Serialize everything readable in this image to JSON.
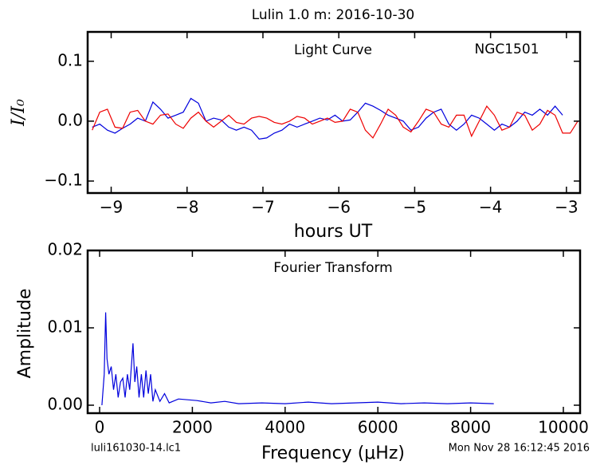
{
  "title": "Lulin 1.0 m:  2016-10-30",
  "file_name": "luli161030-14.lc1",
  "timestamp": "Mon Nov 28 16:12:45 2016",
  "chart_data": [
    {
      "type": "line",
      "annotations": [
        "Light Curve",
        "NGC1501"
      ],
      "x_label": "hours UT",
      "y_label": "I/I₀",
      "xlim": [
        -9.31,
        -2.82
      ],
      "ylim": [
        -0.12,
        0.149
      ],
      "xticks": [
        {
          "value": -9,
          "label": "−9"
        },
        {
          "value": -8,
          "label": "−8"
        },
        {
          "value": -7,
          "label": "−7"
        },
        {
          "value": -6,
          "label": "−6"
        },
        {
          "value": -5,
          "label": "−5"
        },
        {
          "value": -4,
          "label": "−4"
        },
        {
          "value": -3,
          "label": "−3"
        }
      ],
      "yticks": [
        {
          "value": -0.1,
          "label": "−0.1"
        },
        {
          "value": 0,
          "label": "0.0"
        },
        0.1
      ],
      "series": [
        {
          "color": "#0000dd",
          "x": [
            -9.25,
            -9.15,
            -9.05,
            -8.95,
            -8.85,
            -8.75,
            -8.65,
            -8.55,
            -8.45,
            -8.35,
            -8.25,
            -8.15,
            -8.05,
            -7.95,
            -7.85,
            -7.75,
            -7.65,
            -7.55,
            -7.45,
            -7.35,
            -7.25,
            -7.15,
            -7.05,
            -6.95,
            -6.85,
            -6.75,
            -6.65,
            -6.55,
            -6.45,
            -6.35,
            -6.25,
            -6.15,
            -6.05,
            -5.95,
            -5.85,
            -5.75,
            -5.65,
            -5.55,
            -5.45,
            -5.35,
            -5.25,
            -5.15,
            -5.05,
            -4.95,
            -4.85,
            -4.75,
            -4.65,
            -4.55,
            -4.45,
            -4.35,
            -4.25,
            -4.15,
            -4.05,
            -3.95,
            -3.85,
            -3.75,
            -3.65,
            -3.55,
            -3.45,
            -3.35,
            -3.25,
            -3.15,
            -3.05
          ],
          "values": [
            -0.01,
            -0.005,
            -0.015,
            -0.02,
            -0.012,
            -0.005,
            0.005,
            0.0,
            0.032,
            0.02,
            0.005,
            0.01,
            0.015,
            0.038,
            0.03,
            0.0,
            0.005,
            0.002,
            -0.01,
            -0.015,
            -0.01,
            -0.015,
            -0.03,
            -0.028,
            -0.02,
            -0.015,
            -0.005,
            -0.01,
            -0.005,
            0.0,
            0.005,
            0.002,
            0.01,
            0.0,
            0.002,
            0.015,
            0.03,
            0.025,
            0.018,
            0.01,
            0.005,
            0.0,
            -0.015,
            -0.01,
            0.005,
            0.015,
            0.02,
            -0.005,
            -0.015,
            -0.005,
            0.01,
            0.005,
            -0.005,
            -0.015,
            -0.005,
            -0.01,
            0.0,
            0.015,
            0.01,
            0.02,
            0.01,
            0.025,
            0.01
          ]
        },
        {
          "color": "#ee0000",
          "x": [
            -9.25,
            -9.15,
            -9.05,
            -8.95,
            -8.85,
            -8.75,
            -8.65,
            -8.55,
            -8.45,
            -8.35,
            -8.25,
            -8.15,
            -8.05,
            -7.95,
            -7.85,
            -7.75,
            -7.65,
            -7.55,
            -7.45,
            -7.35,
            -7.25,
            -7.15,
            -7.05,
            -6.95,
            -6.85,
            -6.75,
            -6.65,
            -6.55,
            -6.45,
            -6.35,
            -6.25,
            -6.15,
            -6.05,
            -5.95,
            -5.85,
            -5.75,
            -5.65,
            -5.55,
            -5.45,
            -5.35,
            -5.25,
            -5.15,
            -5.05,
            -4.95,
            -4.85,
            -4.75,
            -4.65,
            -4.55,
            -4.45,
            -4.35,
            -4.25,
            -4.15,
            -4.05,
            -3.95,
            -3.85,
            -3.75,
            -3.65,
            -3.55,
            -3.45,
            -3.35,
            -3.25,
            -3.15,
            -3.05,
            -2.95,
            -2.85
          ],
          "values": [
            -0.015,
            0.015,
            0.02,
            -0.01,
            -0.012,
            0.015,
            0.018,
            0.0,
            -0.005,
            0.01,
            0.012,
            -0.005,
            -0.012,
            0.005,
            0.015,
            0.0,
            -0.01,
            0.0,
            0.01,
            -0.002,
            -0.005,
            0.005,
            0.008,
            0.005,
            -0.002,
            -0.005,
            0.0,
            0.008,
            0.005,
            -0.005,
            0.0,
            0.005,
            -0.002,
            0.0,
            0.02,
            0.015,
            -0.015,
            -0.028,
            -0.005,
            0.02,
            0.01,
            -0.01,
            -0.018,
            0.0,
            0.02,
            0.015,
            -0.005,
            -0.01,
            0.01,
            0.01,
            -0.025,
            0.0,
            0.025,
            0.01,
            -0.015,
            -0.01,
            0.015,
            0.01,
            -0.015,
            -0.005,
            0.018,
            0.01,
            -0.02,
            -0.02,
            0.0
          ]
        }
      ]
    },
    {
      "type": "line",
      "annotations": [
        "Fourier Transform"
      ],
      "x_label": "Frequency (μHz)",
      "y_label": "Amplitude",
      "xlim": [
        -258,
        10361
      ],
      "ylim": [
        -0.00103,
        0.02
      ],
      "xticks": [
        0,
        2000,
        4000,
        6000,
        8000,
        10000
      ],
      "yticks": [
        {
          "value": 0,
          "label": "0.00"
        },
        0.01,
        0.02
      ],
      "series": [
        {
          "color": "#0000dd",
          "x": [
            50,
            100,
            130,
            160,
            200,
            250,
            300,
            350,
            400,
            450,
            500,
            550,
            600,
            650,
            720,
            760,
            800,
            850,
            900,
            950,
            1000,
            1050,
            1100,
            1150,
            1200,
            1300,
            1400,
            1500,
            1700,
            1900,
            2100,
            2400,
            2700,
            3000,
            3500,
            4000,
            4500,
            5000,
            5500,
            6000,
            6500,
            7000,
            7500,
            8000,
            8500
          ],
          "values": [
            0.0,
            0.004,
            0.012,
            0.006,
            0.004,
            0.005,
            0.002,
            0.004,
            0.001,
            0.003,
            0.0035,
            0.001,
            0.004,
            0.002,
            0.008,
            0.003,
            0.005,
            0.001,
            0.004,
            0.001,
            0.0045,
            0.0015,
            0.004,
            0.0005,
            0.002,
            0.0005,
            0.0015,
            0.0003,
            0.0008,
            0.0007,
            0.0006,
            0.0003,
            0.0005,
            0.0002,
            0.0003,
            0.0002,
            0.0004,
            0.0002,
            0.0003,
            0.0004,
            0.0002,
            0.0003,
            0.0002,
            0.0003,
            0.0002
          ]
        }
      ]
    }
  ]
}
